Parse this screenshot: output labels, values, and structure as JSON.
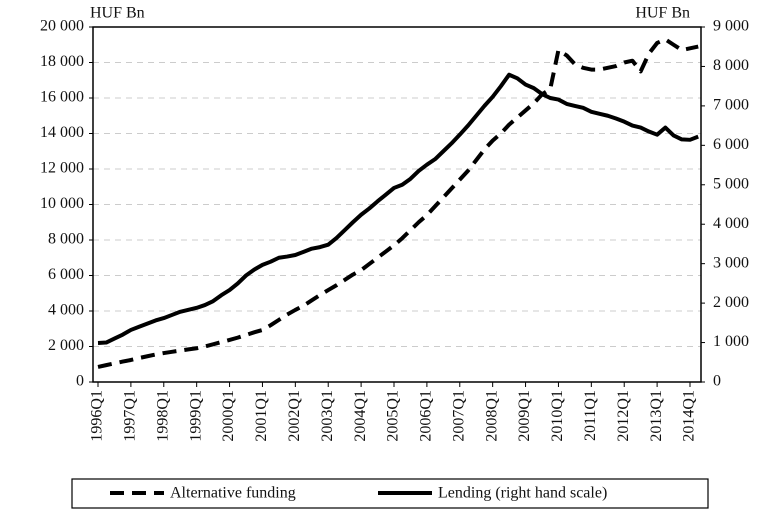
{
  "chart_data": {
    "type": "line",
    "y_label": "HUF Bn",
    "y2_label": "HUF Bn",
    "categories": [
      "1996Q1",
      null,
      null,
      null,
      "1997Q1",
      null,
      null,
      null,
      "1998Q1",
      null,
      null,
      null,
      "1999Q1",
      null,
      null,
      null,
      "2000Q1",
      null,
      null,
      null,
      "2001Q1",
      null,
      null,
      null,
      "2002Q1",
      null,
      null,
      null,
      "2003Q1",
      null,
      null,
      null,
      "2004Q1",
      null,
      null,
      null,
      "2005Q1",
      null,
      null,
      null,
      "2006Q1",
      null,
      null,
      null,
      "2007Q1",
      null,
      null,
      null,
      "2008Q1",
      null,
      null,
      null,
      "2009Q1",
      null,
      null,
      null,
      "2010Q1",
      null,
      null,
      null,
      "2011Q1",
      null,
      null,
      null,
      "2012Q1",
      null,
      null,
      null,
      "2013Q1",
      null,
      null,
      null,
      "2014Q1",
      null
    ],
    "series": [
      {
        "name": "Alternative funding",
        "color": "#000000",
        "dash": true,
        "axis": "y",
        "values": [
          850,
          950,
          1050,
          1150,
          1240,
          1350,
          1450,
          1550,
          1630,
          1700,
          1770,
          1840,
          1900,
          2000,
          2120,
          2250,
          2370,
          2500,
          2650,
          2800,
          2930,
          3200,
          3500,
          3800,
          4060,
          4300,
          4600,
          4900,
          5180,
          5450,
          5750,
          6050,
          6300,
          6650,
          7000,
          7350,
          7700,
          8100,
          8550,
          9000,
          9400,
          9900,
          10400,
          10900,
          11400,
          11900,
          12500,
          13100,
          13600,
          14000,
          14500,
          14900,
          15300,
          15700,
          16200,
          16500,
          18700,
          18400,
          17900,
          17700,
          17600,
          17600,
          17700,
          17800,
          18000,
          18100,
          17500,
          18500,
          19100,
          19300,
          19000,
          18700,
          18800,
          18900
        ]
      },
      {
        "name": "Lending (right hand scale)",
        "color": "#000000",
        "dash": false,
        "axis": "y2",
        "values": [
          990,
          1000,
          1100,
          1200,
          1320,
          1400,
          1480,
          1560,
          1620,
          1700,
          1780,
          1830,
          1880,
          1950,
          2050,
          2200,
          2330,
          2500,
          2700,
          2850,
          2970,
          3050,
          3150,
          3180,
          3220,
          3300,
          3380,
          3420,
          3480,
          3650,
          3850,
          4050,
          4240,
          4400,
          4580,
          4750,
          4920,
          5000,
          5150,
          5350,
          5510,
          5650,
          5850,
          6050,
          6270,
          6500,
          6750,
          7000,
          7230,
          7500,
          7790,
          7700,
          7540,
          7450,
          7300,
          7200,
          7160,
          7050,
          7000,
          6950,
          6850,
          6800,
          6750,
          6680,
          6600,
          6500,
          6450,
          6350,
          6270,
          6450,
          6250,
          6150,
          6140,
          6220
        ]
      }
    ],
    "ylim": [
      0,
      20000
    ],
    "yticks": [
      0,
      {
        "value": 2000,
        "label": "2 000"
      },
      {
        "value": 4000,
        "label": "4 000"
      },
      {
        "value": 6000,
        "label": "6 000"
      },
      {
        "value": 8000,
        "label": "8 000"
      },
      {
        "value": 10000,
        "label": "10 000"
      },
      {
        "value": 12000,
        "label": "12 000"
      },
      {
        "value": 14000,
        "label": "14 000"
      },
      {
        "value": 16000,
        "label": "16 000"
      },
      {
        "value": 18000,
        "label": "18 000"
      },
      {
        "value": 20000,
        "label": "20 000"
      }
    ],
    "y2lim": [
      0,
      9000
    ],
    "y2ticks": [
      0,
      {
        "value": 1000,
        "label": "1 000"
      },
      {
        "value": 2000,
        "label": "2 000"
      },
      {
        "value": 3000,
        "label": "3 000"
      },
      {
        "value": 4000,
        "label": "4 000"
      },
      {
        "value": 5000,
        "label": "5 000"
      },
      {
        "value": 6000,
        "label": "6 000"
      },
      {
        "value": 7000,
        "label": "7 000"
      },
      {
        "value": 8000,
        "label": "8 000"
      },
      {
        "value": 9000,
        "label": "9 000"
      }
    ],
    "grid": true,
    "legend": "bottom"
  }
}
